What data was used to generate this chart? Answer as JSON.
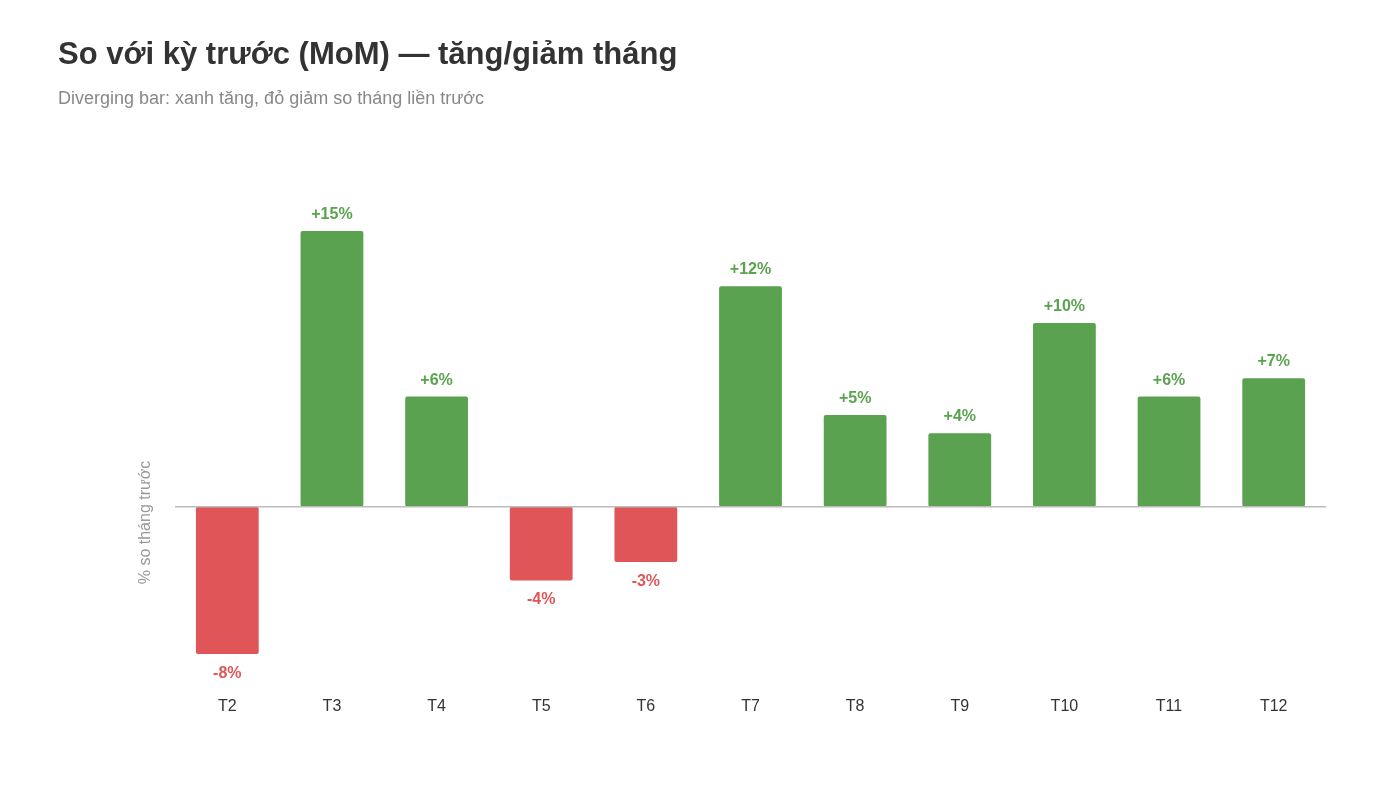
{
  "chart_data": {
    "type": "bar",
    "title": "So với kỳ trước (MoM) — tăng/giảm tháng",
    "subtitle": "Diverging bar: xanh tăng, đỏ giảm so tháng liền trước",
    "ylabel": "% so tháng trước",
    "categories": [
      "T2",
      "T3",
      "T4",
      "T5",
      "T6",
      "T7",
      "T8",
      "T9",
      "T10",
      "T11",
      "T12"
    ],
    "values": [
      -8,
      15,
      6,
      -4,
      -3,
      12,
      5,
      4,
      10,
      6,
      7
    ],
    "colors": [
      "#e05658",
      "#5aa24f",
      "#5aa24f",
      "#e05658",
      "#e05658",
      "#5aa24f",
      "#5aa24f",
      "#5aa24f",
      "#5aa24f",
      "#5aa24f",
      "#5aa24f"
    ],
    "value_labels": [
      "-8%",
      "+15%",
      "+6%",
      "-4%",
      "-3%",
      "+12%",
      "+5%",
      "+4%",
      "+10%",
      "+6%",
      "+7%"
    ],
    "tick_labels": "x"
  }
}
